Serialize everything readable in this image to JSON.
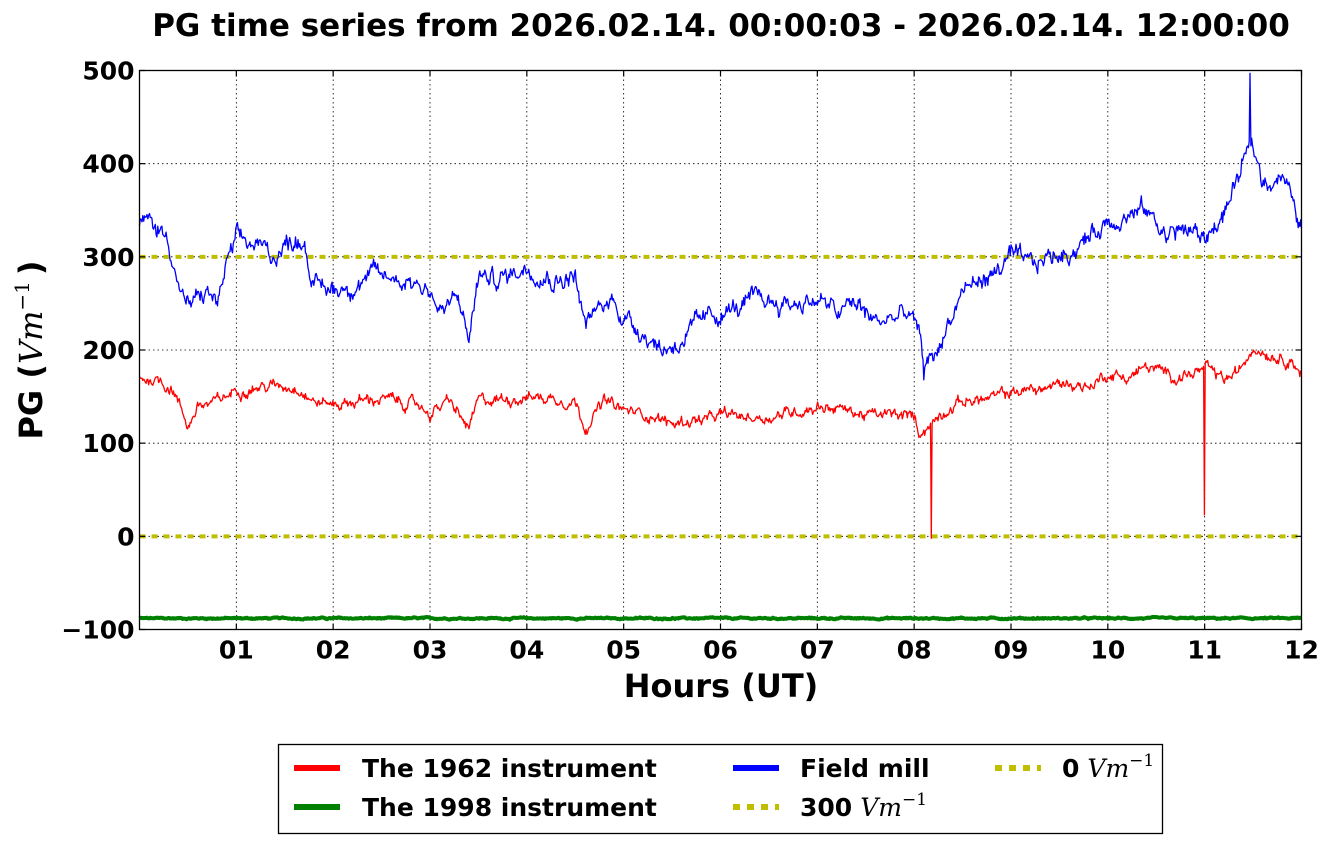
{
  "chart_data": {
    "type": "line",
    "title": "PG time series from 2026.02.14. 00:00:03 - 2026.02.14. 12:00:00",
    "xlabel": "Hours (UT)",
    "ylabel_text": "PG (",
    "ylabel_unit": "Vm",
    "ylabel_exp": "−1",
    "ylabel_close": ")",
    "xlim": [
      0,
      12
    ],
    "ylim": [
      -100,
      500
    ],
    "x_ticks": [
      1,
      2,
      3,
      4,
      5,
      6,
      7,
      8,
      9,
      10,
      11,
      12
    ],
    "x_tick_labels": [
      "01",
      "02",
      "03",
      "04",
      "05",
      "06",
      "07",
      "08",
      "09",
      "10",
      "11",
      "12"
    ],
    "y_ticks": [
      -100,
      0,
      100,
      200,
      300,
      400,
      500
    ],
    "y_tick_labels": [
      "−100",
      "0",
      "100",
      "200",
      "300",
      "400",
      "500"
    ],
    "grid": true,
    "legend_position": "bottom-center",
    "series": [
      {
        "name": "The 1962 instrument",
        "color": "#ff0000",
        "noise": 8,
        "x": [
          0.0,
          0.2,
          0.35,
          0.5,
          0.6,
          0.75,
          0.9,
          1.0,
          1.2,
          1.5,
          1.65,
          1.8,
          2.0,
          2.5,
          2.9,
          3.0,
          3.2,
          3.4,
          3.5,
          3.8,
          4.0,
          4.3,
          4.5,
          4.6,
          4.8,
          5.0,
          5.3,
          5.5,
          5.7,
          5.9,
          6.0,
          6.3,
          6.5,
          6.8,
          7.0,
          7.2,
          7.5,
          7.8,
          8.0,
          8.05,
          8.15,
          8.3,
          8.5,
          8.8,
          9.0,
          9.3,
          9.6,
          9.8,
          10.0,
          10.2,
          10.4,
          10.5,
          10.7,
          10.9,
          11.0,
          11.2,
          11.35,
          11.5,
          11.7,
          11.9,
          12.0
        ],
        "y": [
          170,
          168,
          158,
          118,
          140,
          142,
          150,
          158,
          160,
          162,
          160,
          145,
          142,
          148,
          140,
          132,
          145,
          115,
          145,
          148,
          150,
          148,
          145,
          118,
          145,
          135,
          130,
          120,
          125,
          125,
          130,
          128,
          128,
          135,
          140,
          138,
          130,
          130,
          128,
          112,
          118,
          135,
          145,
          148,
          155,
          158,
          165,
          160,
          175,
          170,
          182,
          178,
          172,
          175,
          180,
          168,
          175,
          205,
          195,
          190,
          175
        ],
        "spikes": [
          [
            8.18,
            -2
          ],
          [
            11.0,
            23
          ]
        ]
      },
      {
        "name": "The 1998 instrument",
        "color": "#008000",
        "noise": 1,
        "x": [
          0,
          12
        ],
        "y": [
          -88,
          -88
        ]
      },
      {
        "name": "Field mill",
        "color": "#0000ff",
        "noise": 13,
        "x": [
          0.0,
          0.1,
          0.2,
          0.3,
          0.4,
          0.5,
          0.6,
          0.7,
          0.8,
          0.9,
          1.0,
          1.2,
          1.4,
          1.6,
          1.7,
          1.8,
          2.0,
          2.2,
          2.4,
          2.6,
          2.8,
          3.0,
          3.1,
          3.3,
          3.4,
          3.5,
          3.7,
          3.9,
          4.0,
          4.3,
          4.5,
          4.6,
          4.7,
          4.9,
          5.0,
          5.2,
          5.4,
          5.6,
          5.8,
          6.0,
          6.2,
          6.4,
          6.6,
          6.8,
          7.0,
          7.2,
          7.4,
          7.6,
          7.8,
          7.95,
          8.05,
          8.1,
          8.2,
          8.3,
          8.5,
          8.8,
          9.0,
          9.2,
          9.4,
          9.6,
          9.8,
          10.0,
          10.2,
          10.4,
          10.6,
          10.8,
          11.0,
          11.2,
          11.4,
          11.5,
          11.6,
          11.8,
          12.0
        ],
        "y": [
          335,
          338,
          330,
          320,
          270,
          245,
          255,
          262,
          250,
          290,
          318,
          312,
          302,
          320,
          318,
          268,
          265,
          270,
          280,
          278,
          275,
          265,
          240,
          255,
          210,
          280,
          275,
          285,
          290,
          275,
          280,
          225,
          240,
          255,
          235,
          220,
          200,
          210,
          230,
          240,
          245,
          255,
          250,
          250,
          255,
          240,
          250,
          230,
          235,
          240,
          215,
          185,
          190,
          215,
          265,
          280,
          300,
          290,
          300,
          305,
          320,
          340,
          345,
          350,
          325,
          330,
          320,
          345,
          400,
          420,
          380,
          390,
          330
        ],
        "spikes": [
          [
            8.1,
            168
          ],
          [
            11.47,
            497
          ]
        ]
      }
    ],
    "reference_lines": [
      {
        "name": "300",
        "value": 300,
        "color": "#bfbf00"
      },
      {
        "name": "0",
        "value": 0,
        "color": "#bfbf00"
      }
    ]
  }
}
